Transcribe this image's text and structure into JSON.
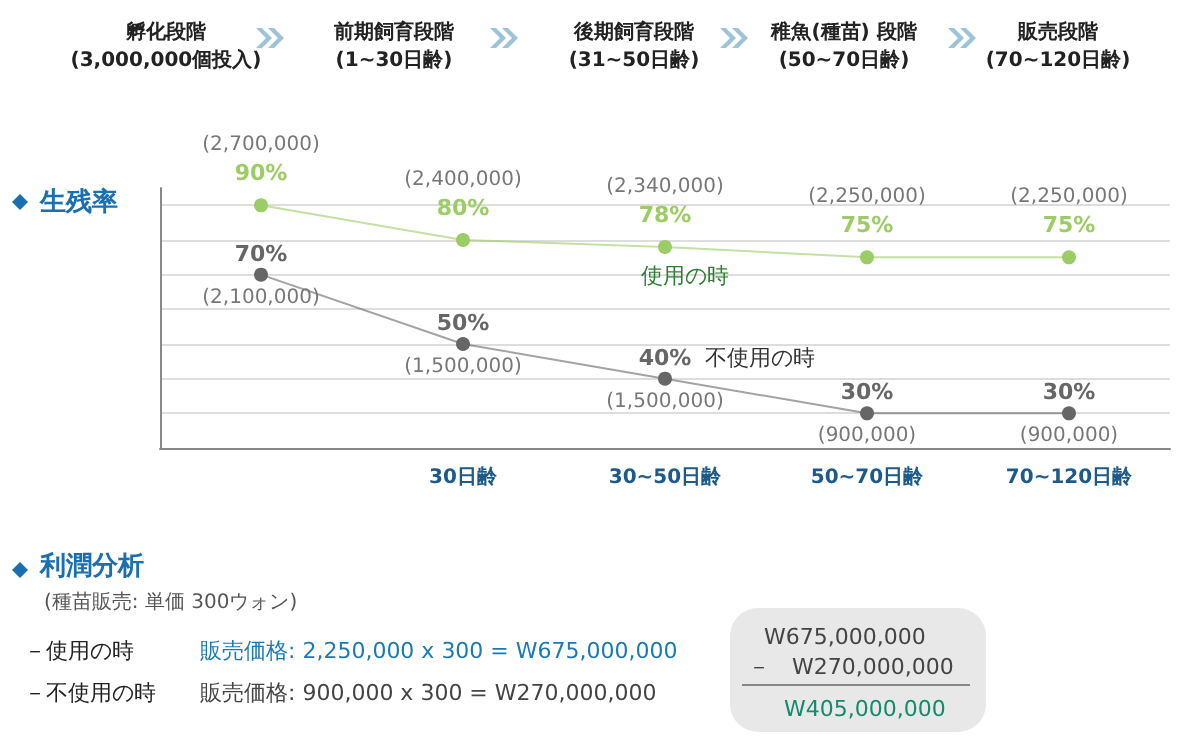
{
  "chart_data": {
    "type": "line",
    "title": "生残率",
    "categories": [
      null,
      "30日齢",
      "30~50日齢",
      "50~70日齢",
      "70~120日齢"
    ],
    "series": [
      {
        "name": "使用の時",
        "color": "#9ccc65",
        "values": [
          90,
          80,
          78,
          75,
          75
        ],
        "value_labels": [
          "(2,700,000)\n90%",
          "(2,400,000)\n80%",
          "(2,340,000)\n78%",
          "(2,250,000)\n75%",
          "(2,250,000)\n75%"
        ]
      },
      {
        "name": "不使用の時",
        "color": "#666666",
        "values": [
          70,
          50,
          40,
          30,
          30
        ],
        "value_labels": [
          "70%\n(2,100,000)",
          "50%\n(1,500,000)",
          "40%\n(1,500,000)",
          "30%\n(900,000)",
          "30%\n(900,000)"
        ]
      }
    ],
    "ylim": [
      20,
      95
    ],
    "yticks": [
      {
        "value": 20,
        "label": null
      },
      {
        "value": 30,
        "label": null
      },
      {
        "value": 40,
        "label": null
      },
      {
        "value": 50,
        "label": null
      },
      {
        "value": 60,
        "label": null
      },
      {
        "value": 70,
        "label": null
      },
      {
        "value": 80,
        "label": null
      },
      {
        "value": 90,
        "label": null
      }
    ],
    "grid": "y",
    "tick_labels": "x",
    "marker": "circle",
    "line_style": "solid",
    "annotations": [
      "孵化段階\n(3,000,000個投入)",
      "前期飼育段階\n(1~30日齢)",
      "後期飼育段階\n(31~50日齢)",
      "稚魚(種苗) 段階\n(50~70日齢)",
      "販売段階\n(70~120日齢)",
      "利潤分析",
      "(種苗販売: 単価 300ウォン)",
      "－使用の時",
      "販売価格: 2,250,000 x 300 = W675,000,000",
      "－不使用の時",
      "販売価格: 900,000 x 300 = W270,000,000",
      "W675,000,000",
      "－　W270,000,000",
      "W405,000,000"
    ]
  }
}
